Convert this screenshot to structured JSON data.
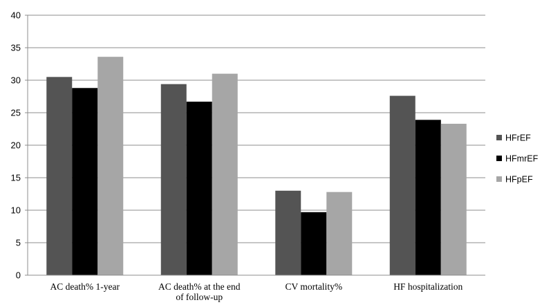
{
  "chart_data": {
    "type": "bar",
    "categories": [
      [
        "AC death% 1-year"
      ],
      [
        "AC death%  at the end",
        "of follow-up"
      ],
      [
        "CV mortality%"
      ],
      [
        "HF hospitalization"
      ]
    ],
    "series": [
      {
        "name": "HFrEF",
        "color": "#545454",
        "values": [
          30.5,
          29.4,
          13.0,
          27.6
        ]
      },
      {
        "name": "HFmrEF",
        "color": "#000000",
        "values": [
          28.8,
          26.7,
          9.7,
          23.9
        ]
      },
      {
        "name": "HFpEF",
        "color": "#a6a6a6",
        "values": [
          33.6,
          31.0,
          12.8,
          23.3
        ]
      }
    ],
    "ylim": [
      0,
      40
    ],
    "yticks": [
      "0",
      "5",
      "10",
      "15",
      "20",
      "25",
      "30",
      "35",
      "40"
    ],
    "grid": true,
    "legend": "right",
    "title": "",
    "xlabel": "",
    "ylabel": ""
  }
}
